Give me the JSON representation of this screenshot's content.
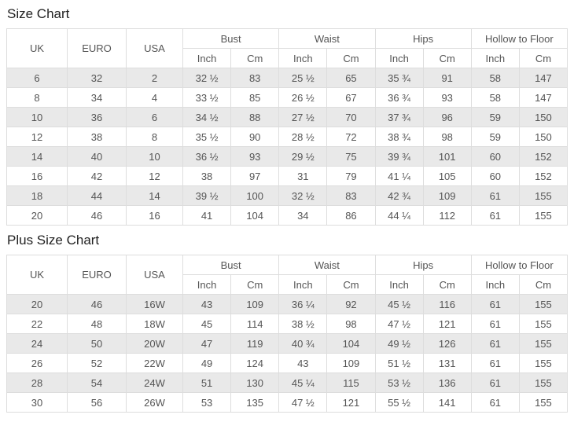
{
  "styles": {
    "stripe_color": "#e9e9e9",
    "border_color": "#dddddd",
    "text_color": "#555555",
    "title_color": "#222222"
  },
  "chart_data": [
    {
      "type": "table",
      "title": "Size Chart",
      "simple_columns": [
        "UK",
        "EURO",
        "USA"
      ],
      "group_columns": [
        {
          "label": "Bust",
          "sub": [
            "Inch",
            "Cm"
          ]
        },
        {
          "label": "Waist",
          "sub": [
            "Inch",
            "Cm"
          ]
        },
        {
          "label": "Hips",
          "sub": [
            "Inch",
            "Cm"
          ]
        },
        {
          "label": "Hollow to Floor",
          "sub": [
            "Inch",
            "Cm"
          ]
        }
      ],
      "rows": [
        [
          "6",
          "32",
          "2",
          "32 ½",
          "83",
          "25 ½",
          "65",
          "35 ¾",
          "91",
          "58",
          "147"
        ],
        [
          "8",
          "34",
          "4",
          "33 ½",
          "85",
          "26 ½",
          "67",
          "36 ¾",
          "93",
          "58",
          "147"
        ],
        [
          "10",
          "36",
          "6",
          "34 ½",
          "88",
          "27 ½",
          "70",
          "37 ¾",
          "96",
          "59",
          "150"
        ],
        [
          "12",
          "38",
          "8",
          "35 ½",
          "90",
          "28 ½",
          "72",
          "38 ¾",
          "98",
          "59",
          "150"
        ],
        [
          "14",
          "40",
          "10",
          "36 ½",
          "93",
          "29 ½",
          "75",
          "39 ¾",
          "101",
          "60",
          "152"
        ],
        [
          "16",
          "42",
          "12",
          "38",
          "97",
          "31",
          "79",
          "41 ¼",
          "105",
          "60",
          "152"
        ],
        [
          "18",
          "44",
          "14",
          "39 ½",
          "100",
          "32 ½",
          "83",
          "42 ¾",
          "109",
          "61",
          "155"
        ],
        [
          "20",
          "46",
          "16",
          "41",
          "104",
          "34",
          "86",
          "44 ¼",
          "112",
          "61",
          "155"
        ]
      ]
    },
    {
      "type": "table",
      "title": "Plus Size Chart",
      "simple_columns": [
        "UK",
        "EURO",
        "USA"
      ],
      "group_columns": [
        {
          "label": "Bust",
          "sub": [
            "Inch",
            "Cm"
          ]
        },
        {
          "label": "Waist",
          "sub": [
            "Inch",
            "Cm"
          ]
        },
        {
          "label": "Hips",
          "sub": [
            "Inch",
            "Cm"
          ]
        },
        {
          "label": "Hollow to Floor",
          "sub": [
            "Inch",
            "Cm"
          ]
        }
      ],
      "rows": [
        [
          "20",
          "46",
          "16W",
          "43",
          "109",
          "36 ¼",
          "92",
          "45 ½",
          "116",
          "61",
          "155"
        ],
        [
          "22",
          "48",
          "18W",
          "45",
          "114",
          "38 ½",
          "98",
          "47 ½",
          "121",
          "61",
          "155"
        ],
        [
          "24",
          "50",
          "20W",
          "47",
          "119",
          "40 ¾",
          "104",
          "49 ½",
          "126",
          "61",
          "155"
        ],
        [
          "26",
          "52",
          "22W",
          "49",
          "124",
          "43",
          "109",
          "51 ½",
          "131",
          "61",
          "155"
        ],
        [
          "28",
          "54",
          "24W",
          "51",
          "130",
          "45 ¼",
          "115",
          "53 ½",
          "136",
          "61",
          "155"
        ],
        [
          "30",
          "56",
          "26W",
          "53",
          "135",
          "47 ½",
          "121",
          "55 ½",
          "141",
          "61",
          "155"
        ]
      ]
    }
  ]
}
